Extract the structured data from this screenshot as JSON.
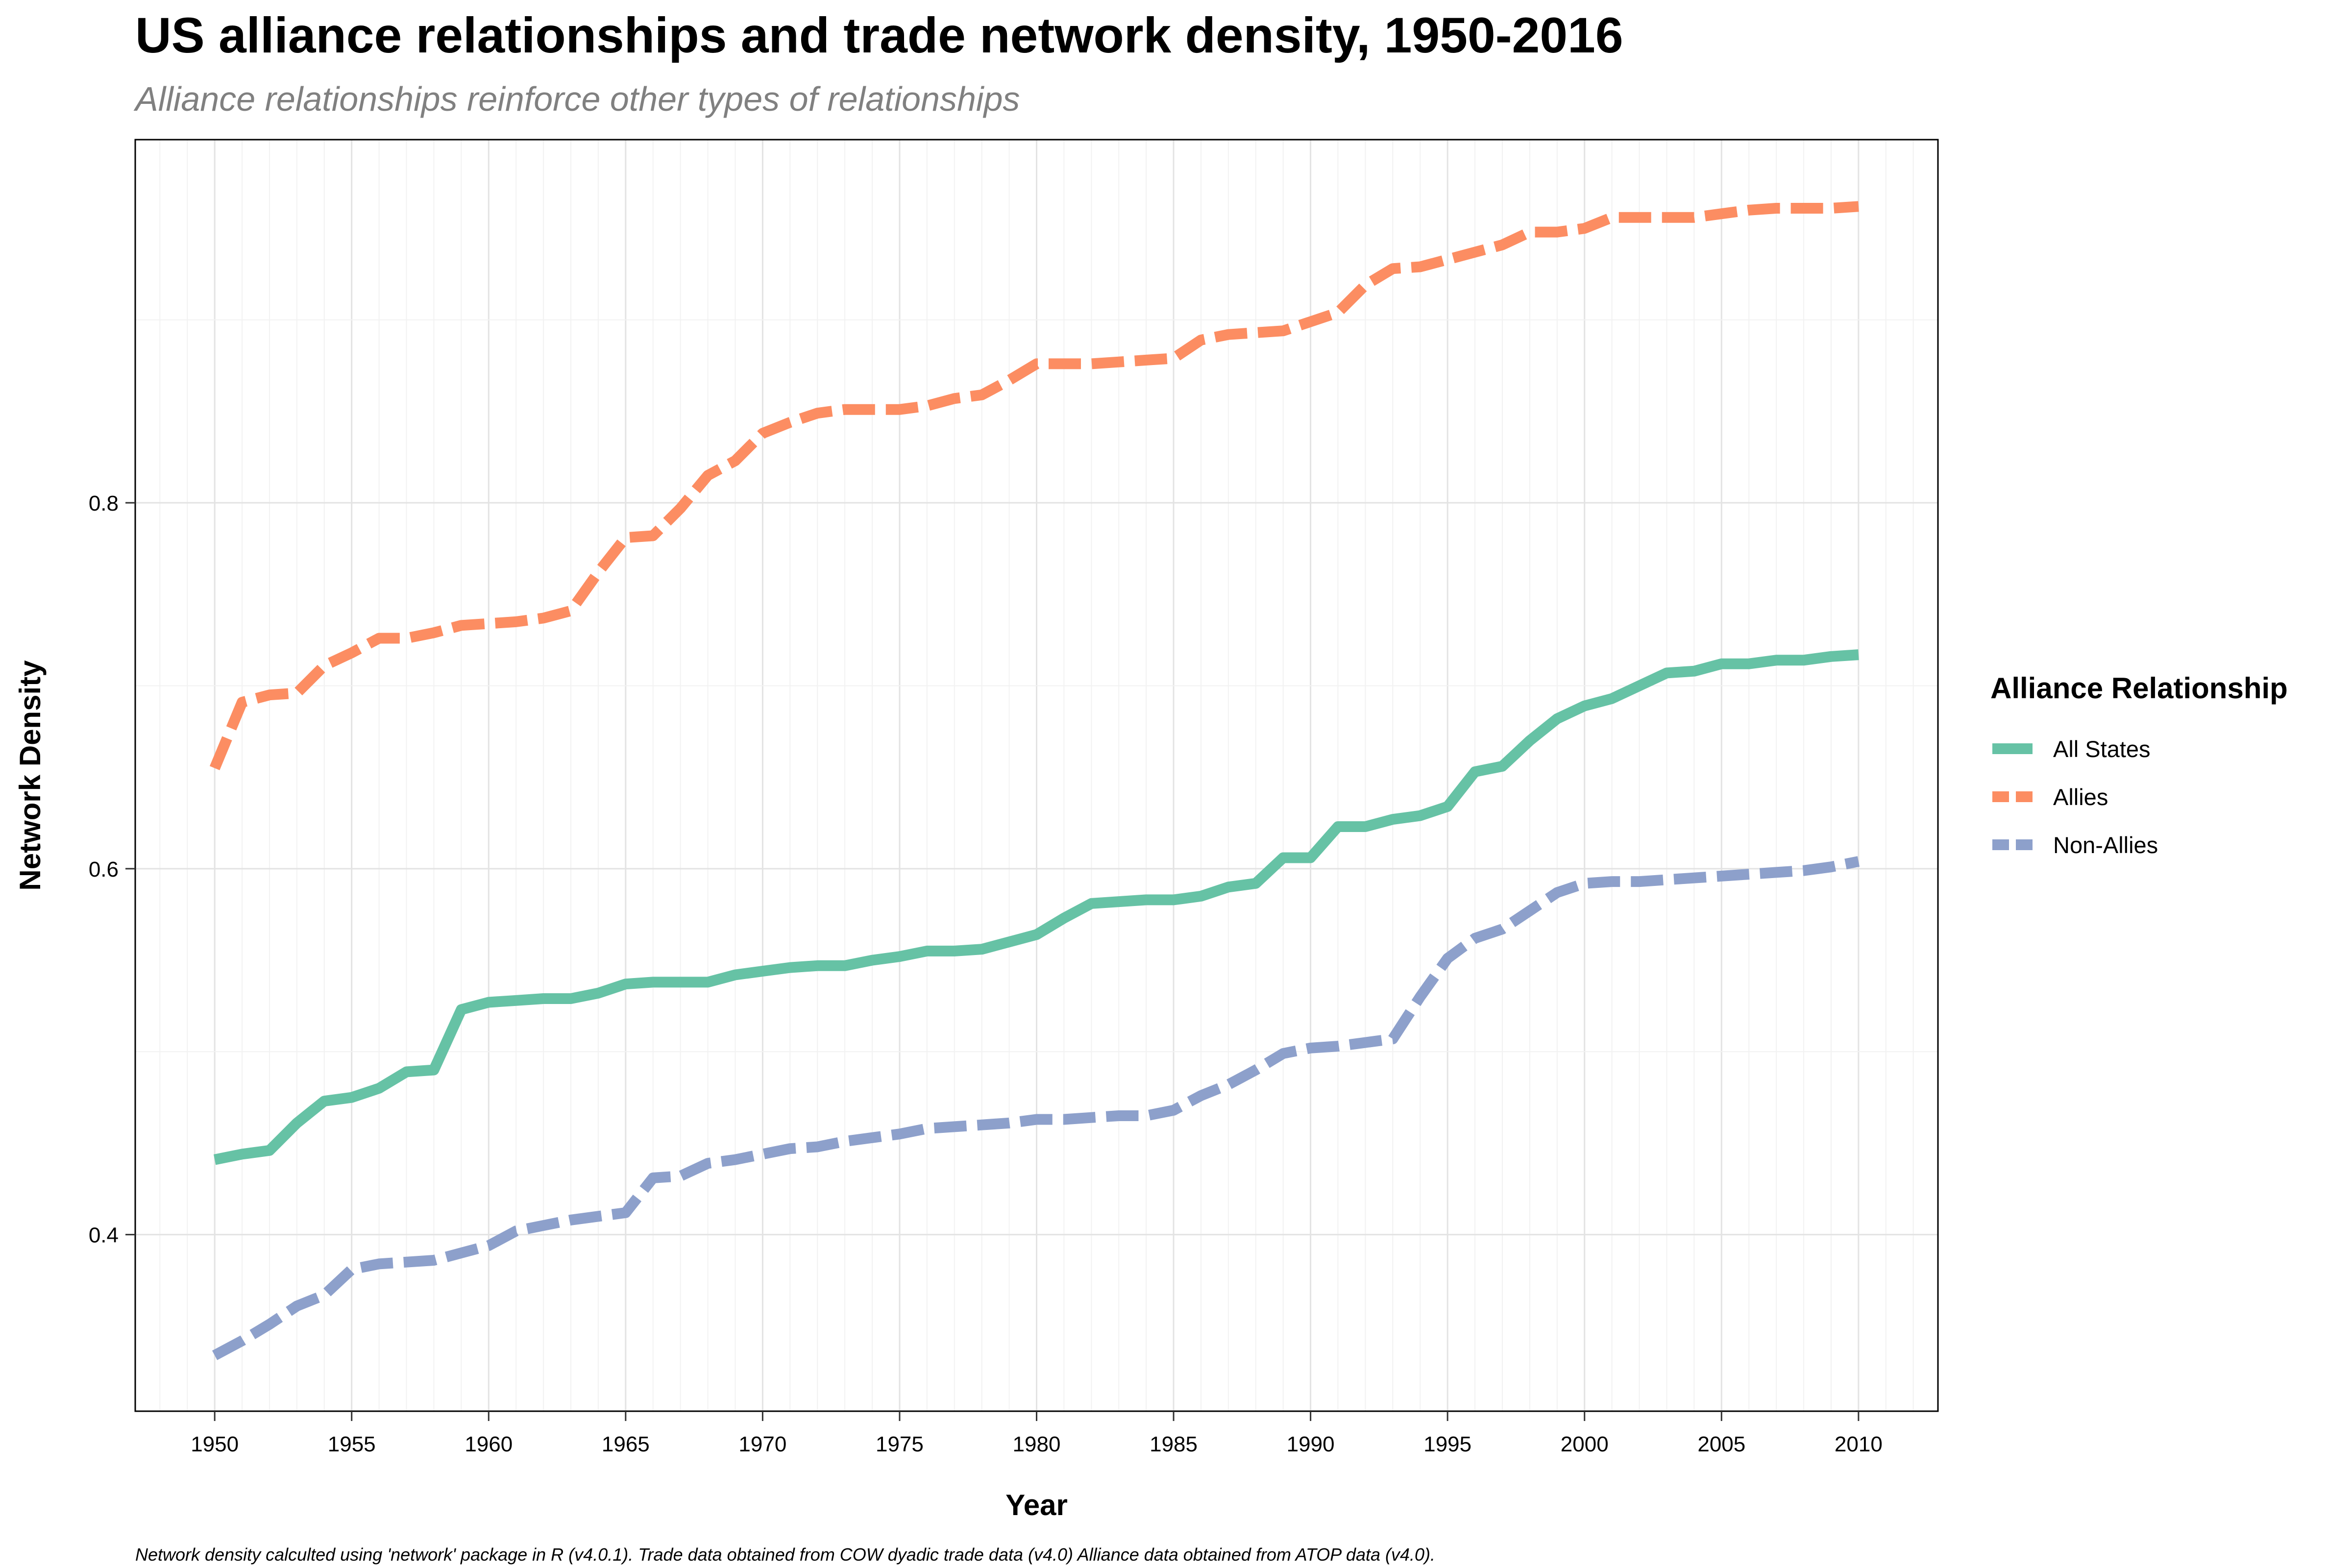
{
  "chart_data": {
    "type": "line",
    "title": "US alliance relationships and trade network density, 1950-2016",
    "subtitle": "Alliance relationships reinforce other types of relationships",
    "xlabel": "Year",
    "ylabel": "Network Density",
    "caption": "Network density calculted using 'network' package in R (v4.0.1). Trade data obtained from COW dyadic trade data (v4.0) Alliance data obtained from ATOP data (v4.0).",
    "xlim": [
      1947.1,
      2012.9
    ],
    "ylim": [
      0.3035,
      0.9985
    ],
    "x_ticks": [
      1950,
      1955,
      1960,
      1965,
      1970,
      1975,
      1980,
      1985,
      1990,
      1995,
      2000,
      2005,
      2010
    ],
    "y_ticks": [
      0.4,
      0.6,
      0.8
    ],
    "y_tick_labels": [
      "0.4",
      "0.6",
      "0.8"
    ],
    "grid": true,
    "legend": {
      "title": "Alliance Relationship",
      "position": "right"
    },
    "x": [
      1950,
      1951,
      1952,
      1953,
      1954,
      1955,
      1956,
      1957,
      1958,
      1959,
      1960,
      1961,
      1962,
      1963,
      1964,
      1965,
      1966,
      1967,
      1968,
      1969,
      1970,
      1971,
      1972,
      1973,
      1974,
      1975,
      1976,
      1977,
      1978,
      1979,
      1980,
      1981,
      1982,
      1983,
      1984,
      1985,
      1986,
      1987,
      1988,
      1989,
      1990,
      1991,
      1992,
      1993,
      1994,
      1995,
      1996,
      1997,
      1998,
      1999,
      2000,
      2001,
      2002,
      2003,
      2004,
      2005,
      2006,
      2007,
      2008,
      2009,
      2010
    ],
    "series": [
      {
        "name": "All States",
        "color": "#66c2a5",
        "dash": "solid",
        "values": [
          0.441,
          0.444,
          0.446,
          0.461,
          0.473,
          0.475,
          0.48,
          0.489,
          0.49,
          0.523,
          0.527,
          0.528,
          0.529,
          0.529,
          0.532,
          0.537,
          0.538,
          0.538,
          0.538,
          0.542,
          0.544,
          0.546,
          0.547,
          0.547,
          0.55,
          0.552,
          0.555,
          0.555,
          0.556,
          0.56,
          0.564,
          0.573,
          0.581,
          0.582,
          0.583,
          0.583,
          0.585,
          0.59,
          0.592,
          0.606,
          0.606,
          0.623,
          0.623,
          0.627,
          0.629,
          0.634,
          0.653,
          0.656,
          0.67,
          0.682,
          0.689,
          0.693,
          0.7,
          0.707,
          0.708,
          0.712,
          0.712,
          0.714,
          0.714,
          0.716,
          0.717
        ]
      },
      {
        "name": "Allies",
        "color": "#fc8d62",
        "dash": "dashed",
        "values": [
          0.655,
          0.691,
          0.695,
          0.696,
          0.711,
          0.718,
          0.726,
          0.726,
          0.729,
          0.733,
          0.734,
          0.735,
          0.737,
          0.741,
          0.762,
          0.781,
          0.782,
          0.797,
          0.815,
          0.823,
          0.838,
          0.844,
          0.849,
          0.851,
          0.851,
          0.851,
          0.853,
          0.857,
          0.859,
          0.867,
          0.876,
          0.876,
          0.876,
          0.877,
          0.878,
          0.879,
          0.889,
          0.892,
          0.893,
          0.894,
          0.899,
          0.904,
          0.919,
          0.928,
          0.929,
          0.933,
          0.937,
          0.941,
          0.948,
          0.948,
          0.95,
          0.956,
          0.956,
          0.956,
          0.956,
          0.958,
          0.96,
          0.961,
          0.961,
          0.961,
          0.962
        ]
      },
      {
        "name": "Non-Allies",
        "color": "#8da0cb",
        "dash": "dashed",
        "values": [
          0.334,
          0.342,
          0.351,
          0.361,
          0.367,
          0.381,
          0.384,
          0.385,
          0.386,
          0.39,
          0.394,
          0.402,
          0.405,
          0.408,
          0.41,
          0.412,
          0.431,
          0.432,
          0.439,
          0.441,
          0.444,
          0.447,
          0.448,
          0.451,
          0.453,
          0.455,
          0.458,
          0.459,
          0.46,
          0.461,
          0.463,
          0.463,
          0.464,
          0.465,
          0.465,
          0.468,
          0.476,
          0.482,
          0.49,
          0.499,
          0.502,
          0.503,
          0.505,
          0.507,
          0.53,
          0.551,
          0.562,
          0.567,
          0.577,
          0.587,
          0.592,
          0.593,
          0.593,
          0.594,
          0.595,
          0.596,
          0.597,
          0.598,
          0.599,
          0.601,
          0.604
        ]
      }
    ]
  }
}
